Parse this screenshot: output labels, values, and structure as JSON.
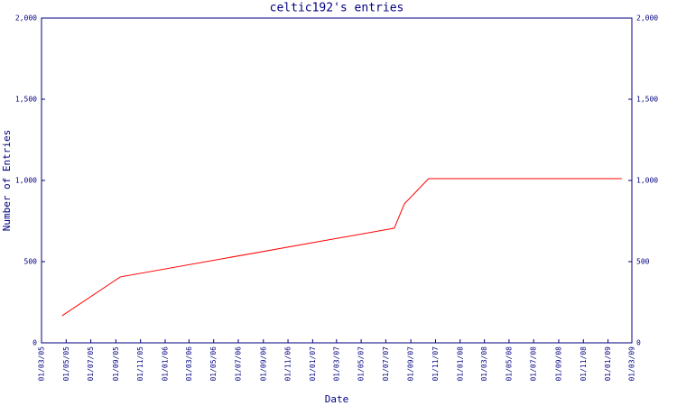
{
  "chart_data": {
    "type": "line",
    "title": "celtic192's entries",
    "xlabel": "Date",
    "ylabel": "Number of Entries",
    "x": [
      "21/04/05",
      "12/09/05",
      "22/07/07",
      "16/08/07",
      "15/10/07",
      "04/02/09"
    ],
    "series": [
      {
        "name": "entries",
        "color": "#ff0000",
        "values": [
          167,
          406,
          706,
          856,
          1011,
          1011
        ]
      }
    ],
    "xlim": [
      "01/03/05",
      "01/03/09"
    ],
    "xticks": [
      "01/03/05",
      "01/05/05",
      "01/07/05",
      "01/09/05",
      "01/11/05",
      "01/01/06",
      "01/03/06",
      "01/05/06",
      "01/07/06",
      "01/09/06",
      "01/11/06",
      "01/01/07",
      "01/03/07",
      "01/05/07",
      "01/07/07",
      "01/09/07",
      "01/11/07",
      "01/01/08",
      "01/03/08",
      "01/05/08",
      "01/07/08",
      "01/09/08",
      "01/11/08",
      "01/01/09",
      "01/03/09"
    ],
    "ylim": [
      0,
      2000
    ],
    "yticks": [
      0,
      500,
      {
        "value": 1000,
        "label": "1,000"
      },
      {
        "value": 1500,
        "label": "1,500"
      },
      {
        "value": 2000,
        "label": "2,000"
      }
    ]
  }
}
